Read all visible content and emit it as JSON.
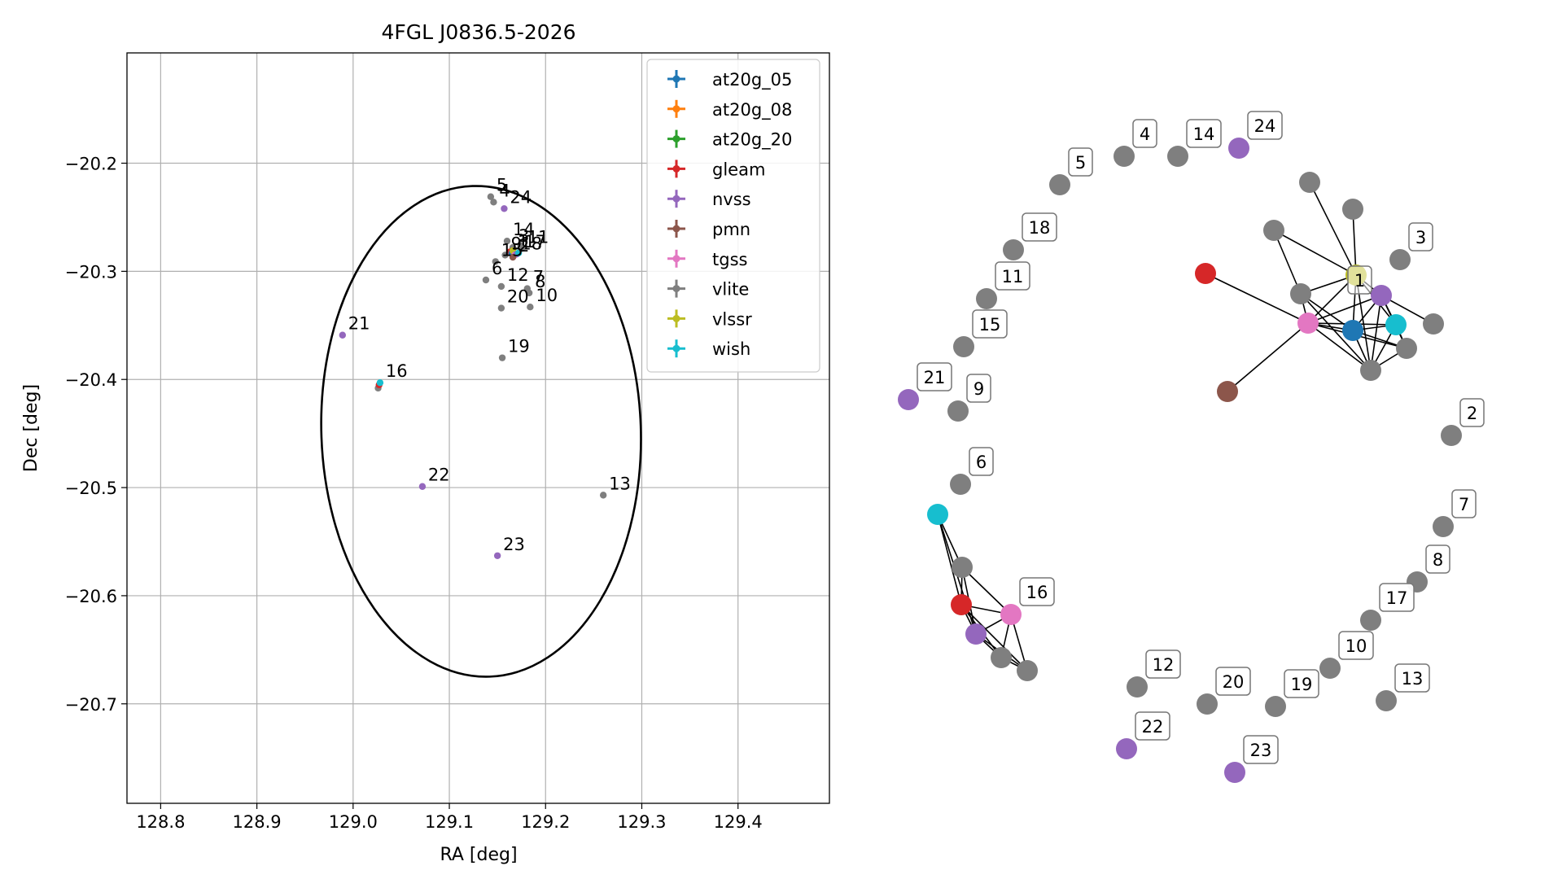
{
  "chart_data": [
    {
      "type": "scatter",
      "title": "4FGL J0836.5-2026",
      "xlabel": "RA [deg]",
      "ylabel": "Dec [deg]",
      "xlim": [
        128.765,
        129.495
      ],
      "ylim": [
        -20.792,
        -20.098
      ],
      "xticks": [
        128.8,
        128.9,
        129.0,
        129.1,
        129.2,
        129.3,
        129.4
      ],
      "xtick_labels": [
        "128.8",
        "128.9",
        "129.0",
        "129.1",
        "129.2",
        "129.3",
        "129.4"
      ],
      "yticks": [
        -20.2,
        -20.3,
        -20.4,
        -20.5,
        -20.6,
        -20.7
      ],
      "ytick_labels": [
        "−20.2",
        "−20.3",
        "−20.4",
        "−20.5",
        "−20.6",
        "−20.7"
      ],
      "grid": true,
      "legend_position": "top-right",
      "legend": [
        {
          "name": "at20g_05",
          "color": "#1f77b4"
        },
        {
          "name": "at20g_08",
          "color": "#ff7f0e"
        },
        {
          "name": "at20g_20",
          "color": "#2ca02c"
        },
        {
          "name": "gleam",
          "color": "#d62728"
        },
        {
          "name": "nvss",
          "color": "#9467bd"
        },
        {
          "name": "pmn",
          "color": "#8c564b"
        },
        {
          "name": "tgss",
          "color": "#e377c2"
        },
        {
          "name": "vlite",
          "color": "#7f7f7f"
        },
        {
          "name": "vlssr",
          "color": "#bcbd22"
        },
        {
          "name": "wish",
          "color": "#17becf"
        }
      ],
      "ellipse": {
        "center": [
          129.133,
          -20.448
        ],
        "semi_axis_ra": 0.166,
        "semi_axis_dec": 0.227
      },
      "points": [
        {
          "ra": 129.143,
          "dec": -20.231,
          "color": "#7f7f7f",
          "label": "5"
        },
        {
          "ra": 129.146,
          "dec": -20.236,
          "color": "#7f7f7f",
          "label": "4"
        },
        {
          "ra": 129.157,
          "dec": -20.242,
          "color": "#9467bd",
          "label": "24"
        },
        {
          "ra": 129.16,
          "dec": -20.272,
          "color": "#7f7f7f",
          "label": "14"
        },
        {
          "ra": 129.166,
          "dec": -20.278,
          "color": "#7f7f7f",
          "label": "3"
        },
        {
          "ra": 129.174,
          "dec": -20.276,
          "color": "#7f7f7f",
          "label": ""
        },
        {
          "ra": 129.163,
          "dec": -20.282,
          "color": "#d62728",
          "label": ""
        },
        {
          "ra": 129.165,
          "dec": -20.283,
          "color": "#1f77b4",
          "label": "1"
        },
        {
          "ra": 129.166,
          "dec": -20.281,
          "color": "#bcbd22",
          "label": ""
        },
        {
          "ra": 129.168,
          "dec": -20.285,
          "color": "#e377c2",
          "label": "18"
        },
        {
          "ra": 129.17,
          "dec": -20.284,
          "color": "#9467bd",
          "label": ""
        },
        {
          "ra": 129.172,
          "dec": -20.283,
          "color": "#17becf",
          "label": "17"
        },
        {
          "ra": 129.175,
          "dec": -20.279,
          "color": "#7f7f7f",
          "label": "11"
        },
        {
          "ra": 129.158,
          "dec": -20.285,
          "color": "#7f7f7f",
          "label": "9"
        },
        {
          "ra": 129.166,
          "dec": -20.287,
          "color": "#8c564b",
          "label": "2"
        },
        {
          "ra": 129.148,
          "dec": -20.291,
          "color": "#7f7f7f",
          "label": "15"
        },
        {
          "ra": 129.138,
          "dec": -20.308,
          "color": "#7f7f7f",
          "label": "6"
        },
        {
          "ra": 129.154,
          "dec": -20.314,
          "color": "#7f7f7f",
          "label": "12"
        },
        {
          "ra": 129.181,
          "dec": -20.316,
          "color": "#7f7f7f",
          "label": "7"
        },
        {
          "ra": 129.183,
          "dec": -20.32,
          "color": "#7f7f7f",
          "label": "8"
        },
        {
          "ra": 129.154,
          "dec": -20.334,
          "color": "#7f7f7f",
          "label": "20"
        },
        {
          "ra": 129.184,
          "dec": -20.333,
          "color": "#7f7f7f",
          "label": "10"
        },
        {
          "ra": 129.155,
          "dec": -20.38,
          "color": "#7f7f7f",
          "label": "19"
        },
        {
          "ra": 128.989,
          "dec": -20.359,
          "color": "#9467bd",
          "label": "21"
        },
        {
          "ra": 129.026,
          "dec": -20.408,
          "color": "#7f7f7f",
          "label": ""
        },
        {
          "ra": 129.027,
          "dec": -20.405,
          "color": "#d62728",
          "label": ""
        },
        {
          "ra": 129.028,
          "dec": -20.403,
          "color": "#17becf",
          "label": "16"
        },
        {
          "ra": 129.072,
          "dec": -20.499,
          "color": "#9467bd",
          "label": "22"
        },
        {
          "ra": 129.26,
          "dec": -20.507,
          "color": "#7f7f7f",
          "label": "13"
        },
        {
          "ra": 129.15,
          "dec": -20.563,
          "color": "#9467bd",
          "label": "23"
        }
      ]
    },
    {
      "type": "network",
      "nodes": [
        {
          "label": "4",
          "color": "#7f7f7f"
        },
        {
          "label": "14",
          "color": "#7f7f7f"
        },
        {
          "label": "24",
          "color": "#9467bd"
        },
        {
          "label": "5",
          "color": "#7f7f7f"
        },
        {
          "label": "18",
          "color": "#7f7f7f"
        },
        {
          "label": "11",
          "color": "#7f7f7f"
        },
        {
          "label": "15",
          "color": "#7f7f7f"
        },
        {
          "label": "21",
          "color": "#9467bd"
        },
        {
          "label": "9",
          "color": "#7f7f7f"
        },
        {
          "label": "3",
          "color": "#7f7f7f"
        },
        {
          "label": "2",
          "color": "#7f7f7f"
        },
        {
          "label": "6",
          "color": "#7f7f7f"
        },
        {
          "label": "7",
          "color": "#7f7f7f"
        },
        {
          "label": "8",
          "color": "#7f7f7f"
        },
        {
          "label": "17",
          "color": "#7f7f7f"
        },
        {
          "label": "10",
          "color": "#7f7f7f"
        },
        {
          "label": "12",
          "color": "#7f7f7f"
        },
        {
          "label": "20",
          "color": "#7f7f7f"
        },
        {
          "label": "19",
          "color": "#7f7f7f"
        },
        {
          "label": "13",
          "color": "#7f7f7f"
        },
        {
          "label": "22",
          "color": "#9467bd"
        },
        {
          "label": "23",
          "color": "#9467bd"
        },
        {
          "label": "1",
          "color": "#bcbd22"
        },
        {
          "label": "16",
          "color": "#e377c2"
        }
      ]
    }
  ]
}
